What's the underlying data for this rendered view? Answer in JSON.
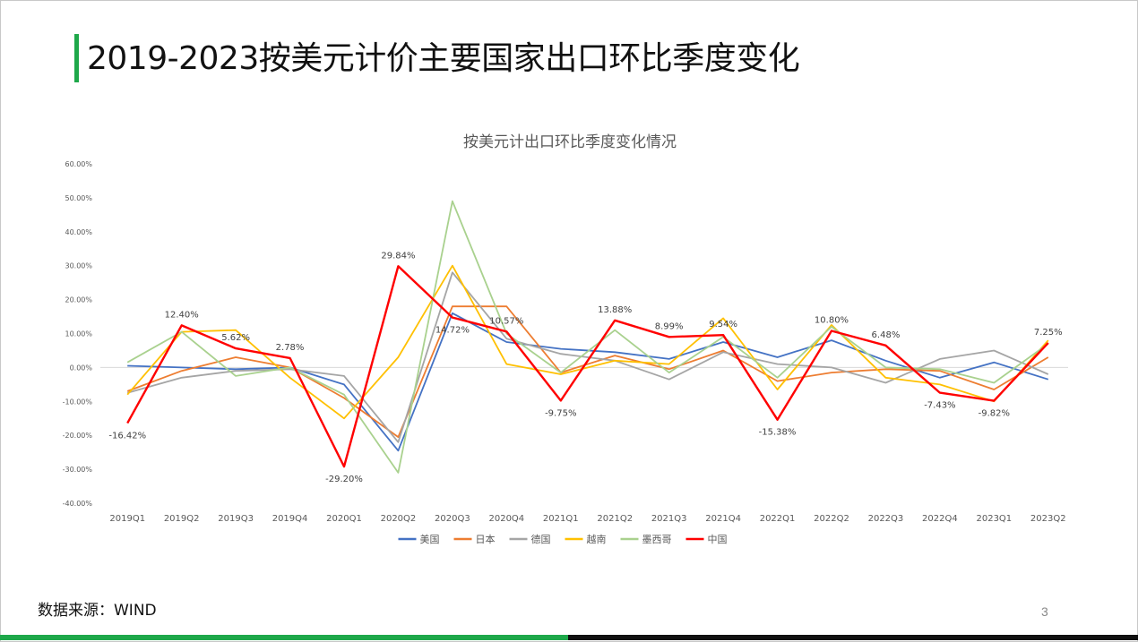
{
  "page": {
    "title": "2019-2023按美元计价主要国家出口环比季度变化",
    "source": "数据来源：WIND",
    "page_number": "3",
    "accent_color": "#1ea84a",
    "bottom_bar_colors": [
      "#1ea84a",
      "#111111"
    ]
  },
  "chart_data": {
    "type": "line",
    "title": "按美元计出口环比季度变化情况",
    "xlabel": "",
    "ylabel": "",
    "ylim": [
      -40,
      60
    ],
    "yticks": [
      "60.00%",
      "50.00%",
      "40.00%",
      "30.00%",
      "20.00%",
      "10.00%",
      "0.00%",
      "-10.00%",
      "-20.00%",
      "-30.00%",
      "-40.00%"
    ],
    "categories": [
      "2019Q1",
      "2019Q2",
      "2019Q3",
      "2019Q4",
      "2020Q1",
      "2020Q2",
      "2020Q3",
      "2020Q4",
      "2021Q1",
      "2021Q2",
      "2021Q3",
      "2021Q4",
      "2022Q1",
      "2022Q2",
      "2022Q3",
      "2022Q4",
      "2023Q1",
      "2023Q2"
    ],
    "legend_position": "bottom",
    "grid": false,
    "series": [
      {
        "name": "美国",
        "color": "#4472c4",
        "values": [
          0.5,
          0,
          -0.5,
          0,
          -5,
          -24.5,
          16,
          7.5,
          5.5,
          4.5,
          2.5,
          7.5,
          3,
          8,
          2,
          -3,
          1.5,
          -3.5
        ]
      },
      {
        "name": "日本",
        "color": "#ed7d31",
        "values": [
          -7,
          -1,
          3,
          0,
          -9,
          -20.5,
          18,
          18,
          -1.5,
          3.5,
          -0.5,
          5,
          -4,
          -1.5,
          -0.5,
          -1,
          -6.5,
          3
        ]
      },
      {
        "name": "德国",
        "color": "#a5a5a5",
        "values": [
          -7.5,
          -3,
          -1,
          -0.5,
          -2.5,
          -22,
          28,
          8.5,
          4,
          2,
          -3.5,
          4.5,
          1,
          0,
          -4.5,
          2.5,
          5,
          -2
        ]
      },
      {
        "name": "越南",
        "color": "#ffc000",
        "values": [
          -8,
          10.5,
          11,
          -3,
          -15,
          3,
          30,
          1,
          -2,
          2,
          1,
          14.5,
          -6.5,
          12.5,
          -3,
          -5,
          -10,
          8
        ]
      },
      {
        "name": "墨西哥",
        "color": "#a9d18e",
        "values": [
          1.5,
          10.5,
          -2.5,
          0,
          -8,
          -31,
          49,
          10,
          -1.5,
          11,
          -1.5,
          9,
          -3,
          12,
          0,
          -0.5,
          -4.5,
          7
        ]
      },
      {
        "name": "中国",
        "color": "#ff0000",
        "values": [
          -16.42,
          12.4,
          5.62,
          2.78,
          -29.2,
          29.84,
          14.72,
          10.57,
          -9.75,
          13.88,
          8.99,
          9.54,
          -15.38,
          10.8,
          6.48,
          -7.43,
          -9.82,
          7.25
        ]
      }
    ],
    "data_labels": [
      {
        "series": "中国",
        "category": "2019Q1",
        "text": "-16.42%",
        "pos": "below"
      },
      {
        "series": "中国",
        "category": "2019Q2",
        "text": "12.40%",
        "pos": "above"
      },
      {
        "series": "中国",
        "category": "2019Q3",
        "text": "5.62%",
        "pos": "above"
      },
      {
        "series": "中国",
        "category": "2019Q4",
        "text": "2.78%",
        "pos": "above"
      },
      {
        "series": "中国",
        "category": "2020Q1",
        "text": "-29.20%",
        "pos": "below"
      },
      {
        "series": "中国",
        "category": "2020Q2",
        "text": "29.84%",
        "pos": "above"
      },
      {
        "series": "中国",
        "category": "2020Q3",
        "text": "14.72%",
        "pos": "below"
      },
      {
        "series": "中国",
        "category": "2020Q4",
        "text": "10.57%",
        "pos": "above"
      },
      {
        "series": "中国",
        "category": "2021Q1",
        "text": "-9.75%",
        "pos": "below"
      },
      {
        "series": "中国",
        "category": "2021Q2",
        "text": "13.88%",
        "pos": "above"
      },
      {
        "series": "中国",
        "category": "2021Q3",
        "text": "8.99%",
        "pos": "above"
      },
      {
        "series": "中国",
        "category": "2021Q4",
        "text": "9.54%",
        "pos": "above"
      },
      {
        "series": "中国",
        "category": "2022Q1",
        "text": "-15.38%",
        "pos": "below"
      },
      {
        "series": "中国",
        "category": "2022Q2",
        "text": "10.80%",
        "pos": "above"
      },
      {
        "series": "中国",
        "category": "2022Q3",
        "text": "6.48%",
        "pos": "above"
      },
      {
        "series": "中国",
        "category": "2022Q4",
        "text": "-7.43%",
        "pos": "below"
      },
      {
        "series": "中国",
        "category": "2023Q1",
        "text": "-9.82%",
        "pos": "below"
      },
      {
        "series": "中国",
        "category": "2023Q2",
        "text": "7.25%",
        "pos": "above"
      }
    ]
  }
}
